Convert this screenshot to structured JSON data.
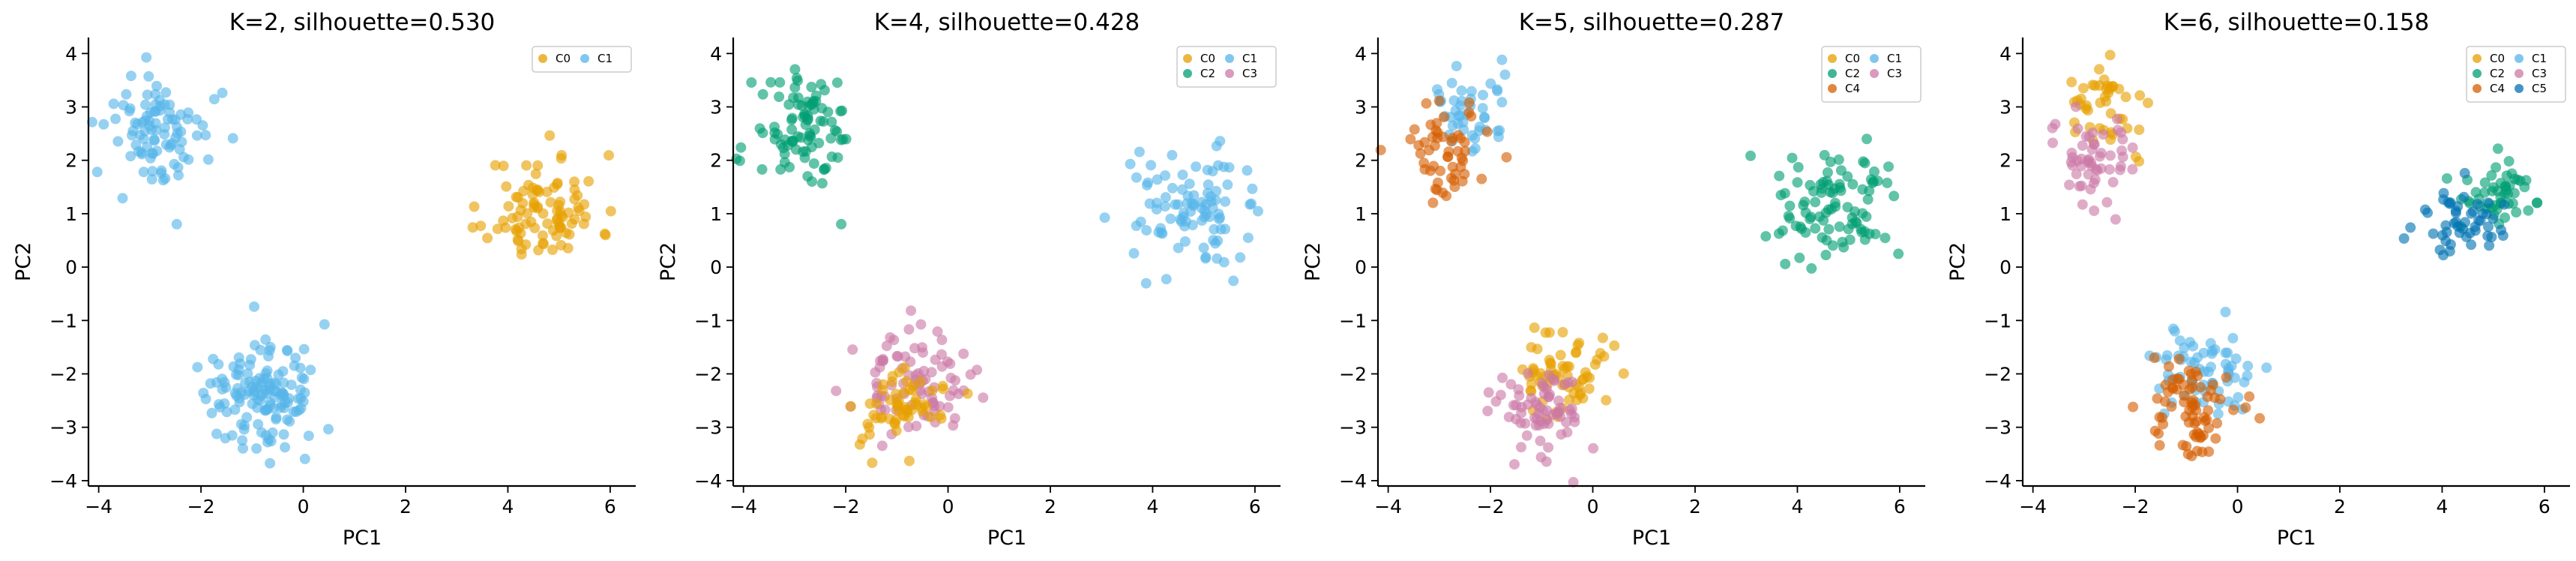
{
  "colors": {
    "C0": "#E69F00",
    "C1": "#56B4E9",
    "C2": "#009E73",
    "C3": "#CC79A7",
    "C4": "#D55E00",
    "C5": "#0072B2"
  },
  "chart_data": [
    {
      "type": "scatter",
      "title": "K=2, silhouette=0.530",
      "xlabel": "PC1",
      "ylabel": "PC2",
      "xlim": [
        -4.2,
        6.5
      ],
      "ylim": [
        -4.1,
        4.3
      ],
      "xticks": [
        "−4",
        "−2",
        "0",
        "2",
        "4",
        "6"
      ],
      "yticks": [
        "−4",
        "−3",
        "−2",
        "−1",
        "0",
        "1",
        "2",
        "3",
        "4"
      ],
      "legend": {
        "placement": "top-right",
        "ncol": 2,
        "entries": [
          "C0",
          "C1"
        ]
      },
      "clusters": [
        {
          "name": "C0",
          "color": "C0",
          "center": [
            4.7,
            1.1
          ],
          "spread": [
            0.55,
            0.5
          ],
          "count": 95,
          "seed": 11
        },
        {
          "name": "C1",
          "color": "C1",
          "center": [
            -2.8,
            2.5
          ],
          "spread": [
            0.5,
            0.55
          ],
          "count": 95,
          "seed": 12
        },
        {
          "name": "C1",
          "color": "C1",
          "center": [
            -0.8,
            -2.4
          ],
          "spread": [
            0.55,
            0.5
          ],
          "count": 140,
          "seed": 13
        }
      ]
    },
    {
      "type": "scatter",
      "title": "K=4, silhouette=0.428",
      "xlabel": "PC1",
      "ylabel": "PC2",
      "xlim": [
        -4.2,
        6.5
      ],
      "ylim": [
        -4.1,
        4.3
      ],
      "xticks": [
        "−4",
        "−2",
        "0",
        "2",
        "4",
        "6"
      ],
      "yticks": [
        "−4",
        "−3",
        "−2",
        "−1",
        "0",
        "1",
        "2",
        "3",
        "4"
      ],
      "legend": {
        "placement": "top-right",
        "ncol": 2,
        "entries": [
          "C0",
          "C1",
          "C2",
          "C3"
        ]
      },
      "clusters": [
        {
          "name": "C2",
          "color": "C2",
          "center": [
            -2.8,
            2.5
          ],
          "spread": [
            0.5,
            0.55
          ],
          "count": 95,
          "seed": 21
        },
        {
          "name": "C1",
          "color": "C1",
          "center": [
            4.7,
            1.1
          ],
          "spread": [
            0.55,
            0.5
          ],
          "count": 95,
          "seed": 22
        },
        {
          "name": "C3",
          "color": "C3",
          "center": [
            -0.7,
            -2.2
          ],
          "spread": [
            0.55,
            0.45
          ],
          "count": 85,
          "seed": 23
        },
        {
          "name": "C0",
          "color": "C0",
          "center": [
            -1.0,
            -2.7
          ],
          "spread": [
            0.45,
            0.4
          ],
          "count": 60,
          "seed": 24
        }
      ]
    },
    {
      "type": "scatter",
      "title": "K=5, silhouette=0.287",
      "xlabel": "PC1",
      "ylabel": "PC2",
      "xlim": [
        -4.2,
        6.5
      ],
      "ylim": [
        -4.1,
        4.3
      ],
      "xticks": [
        "−4",
        "−2",
        "0",
        "2",
        "4",
        "6"
      ],
      "yticks": [
        "−4",
        "−3",
        "−2",
        "−1",
        "0",
        "1",
        "2",
        "3",
        "4"
      ],
      "legend": {
        "placement": "top-right",
        "ncol": 2,
        "entries": [
          "C0",
          "C1",
          "C2",
          "C3",
          "C4"
        ]
      },
      "clusters": [
        {
          "name": "C1",
          "color": "C1",
          "center": [
            -2.5,
            2.9
          ],
          "spread": [
            0.45,
            0.4
          ],
          "count": 45,
          "seed": 31
        },
        {
          "name": "C4",
          "color": "C4",
          "center": [
            -2.9,
            2.2
          ],
          "spread": [
            0.45,
            0.45
          ],
          "count": 55,
          "seed": 32
        },
        {
          "name": "C2",
          "color": "C2",
          "center": [
            4.7,
            1.1
          ],
          "spread": [
            0.55,
            0.5
          ],
          "count": 95,
          "seed": 33
        },
        {
          "name": "C0",
          "color": "C0",
          "center": [
            -0.6,
            -2.0
          ],
          "spread": [
            0.5,
            0.45
          ],
          "count": 70,
          "seed": 34
        },
        {
          "name": "C3",
          "color": "C3",
          "center": [
            -1.0,
            -2.7
          ],
          "spread": [
            0.5,
            0.45
          ],
          "count": 70,
          "seed": 35
        }
      ]
    },
    {
      "type": "scatter",
      "title": "K=6, silhouette=0.158",
      "xlabel": "PC1",
      "ylabel": "PC2",
      "xlim": [
        -4.2,
        6.5
      ],
      "ylim": [
        -4.1,
        4.3
      ],
      "xticks": [
        "−4",
        "−2",
        "0",
        "2",
        "4",
        "6"
      ],
      "yticks": [
        "−4",
        "−3",
        "−2",
        "−1",
        "0",
        "1",
        "2",
        "3",
        "4"
      ],
      "legend": {
        "placement": "top-right",
        "ncol": 2,
        "entries": [
          "C0",
          "C1",
          "C2",
          "C3",
          "C4",
          "C5"
        ]
      },
      "clusters": [
        {
          "name": "C0",
          "color": "C0",
          "center": [
            -2.5,
            3.0
          ],
          "spread": [
            0.45,
            0.4
          ],
          "count": 45,
          "seed": 41
        },
        {
          "name": "C3",
          "color": "C3",
          "center": [
            -2.9,
            2.1
          ],
          "spread": [
            0.45,
            0.45
          ],
          "count": 55,
          "seed": 42
        },
        {
          "name": "C2",
          "color": "C2",
          "center": [
            5.0,
            1.4
          ],
          "spread": [
            0.4,
            0.35
          ],
          "count": 50,
          "seed": 43
        },
        {
          "name": "C5",
          "color": "C5",
          "center": [
            4.4,
            0.8
          ],
          "spread": [
            0.45,
            0.4
          ],
          "count": 50,
          "seed": 44
        },
        {
          "name": "C1",
          "color": "C1",
          "center": [
            -0.7,
            -1.9
          ],
          "spread": [
            0.5,
            0.4
          ],
          "count": 65,
          "seed": 45
        },
        {
          "name": "C4",
          "color": "C4",
          "center": [
            -0.9,
            -2.6
          ],
          "spread": [
            0.45,
            0.45
          ],
          "count": 75,
          "seed": 46
        }
      ]
    }
  ]
}
